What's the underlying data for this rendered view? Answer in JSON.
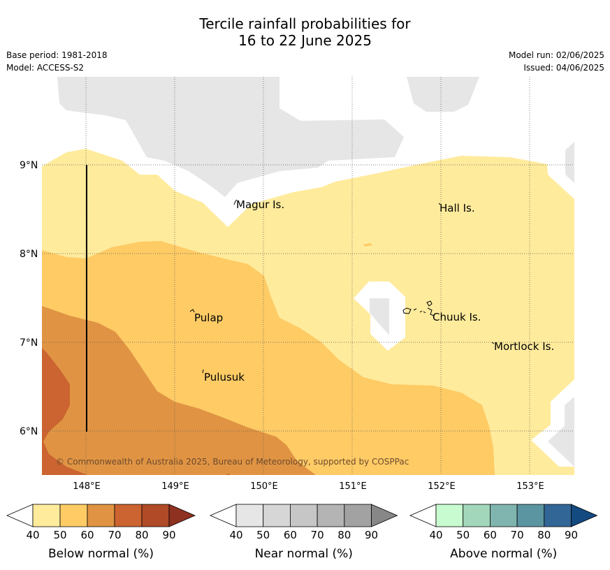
{
  "title": {
    "line1": "Tercile rainfall probabilities for",
    "line2": "16 to 22 June 2025"
  },
  "meta": {
    "base_period": "Base period: 1981-2018",
    "model": "Model: ACCESS-S2",
    "model_run": "Model run: 02/06/2025",
    "issued": "Issued: 04/06/2025"
  },
  "map": {
    "lat_labels": [
      "9°N",
      "8°N",
      "7°N",
      "6°N"
    ],
    "lon_labels": [
      "148°E",
      "149°E",
      "150°E",
      "151°E",
      "152°E",
      "153°E"
    ],
    "places": [
      {
        "name": "Magur Is."
      },
      {
        "name": "Hall Is."
      },
      {
        "name": "Pulap"
      },
      {
        "name": "Chuuk Is."
      },
      {
        "name": "Mortlock Is."
      },
      {
        "name": "Pulusuk"
      }
    ],
    "copyright": "© Commonwealth of Australia 2025, Bureau of Meteorology, supported by COSPPac",
    "colors": {
      "below_40": "#ffeb9c",
      "below_50": "#fecb65",
      "below_60": "#e09443",
      "below_70": "#cb6430",
      "near_40": "#e6e6e6",
      "no_signal": "#ffffff"
    }
  },
  "colorbars": [
    {
      "label": "Below normal (%)",
      "ticks": [
        "40",
        "50",
        "60",
        "70",
        "80",
        "90"
      ],
      "colors": [
        "#ffeb9c",
        "#fecb65",
        "#e09443",
        "#cb6430",
        "#b04a27",
        "#8f3121"
      ]
    },
    {
      "label": "Near normal (%)",
      "ticks": [
        "40",
        "50",
        "60",
        "70",
        "80",
        "90"
      ],
      "colors": [
        "#e6e6e6",
        "#d6d6d6",
        "#c6c6c6",
        "#b4b4b4",
        "#a2a2a2",
        "#878787"
      ]
    },
    {
      "label": "Above normal (%)",
      "ticks": [
        "40",
        "50",
        "60",
        "70",
        "80",
        "90"
      ],
      "colors": [
        "#c8fcd0",
        "#a2d7bb",
        "#7fb5ae",
        "#5c95a2",
        "#326696",
        "#134a7f"
      ]
    }
  ]
}
